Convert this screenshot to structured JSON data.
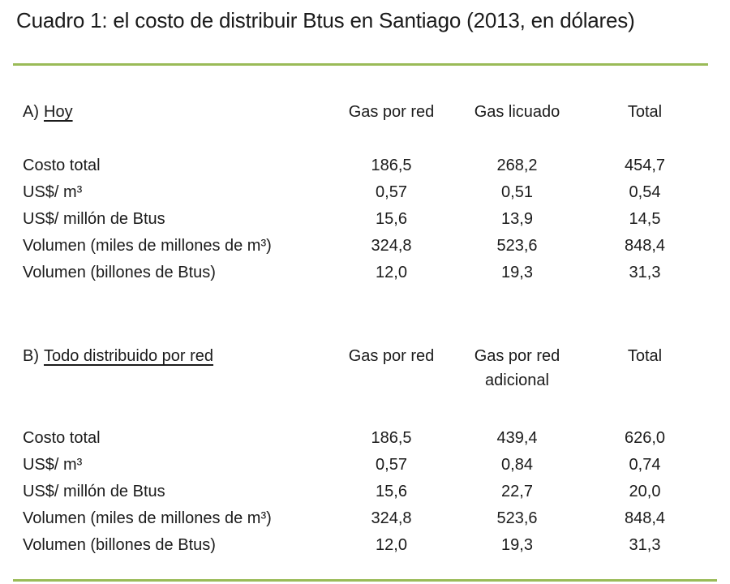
{
  "colors": {
    "accent_green": "#9abb57",
    "text": "#1b1b1b",
    "background": "#ffffff"
  },
  "chart_data": {
    "type": "table",
    "title": "Cuadro 1: el costo de distribuir Btus en Santiago (2013, en dólares)",
    "layout": {
      "grid": "off",
      "dividers": "green horizontal rules top and bottom",
      "value_alignment": "center",
      "decimal_separator": ","
    },
    "sections": [
      {
        "prefix": "A)",
        "name": "Hoy",
        "columns": [
          [
            "Gas por red"
          ],
          [
            "Gas licuado"
          ],
          [
            "Total"
          ]
        ],
        "rows": [
          {
            "label": "Costo total",
            "values": [
              "186,5",
              "268,2",
              "454,7"
            ]
          },
          {
            "label": "US$/ m³",
            "values": [
              "0,57",
              "0,51",
              "0,54"
            ]
          },
          {
            "label": "US$/ millón de Btus",
            "values": [
              "15,6",
              "13,9",
              "14,5"
            ]
          },
          {
            "label": "Volumen (miles de millones de m³)",
            "values": [
              "324,8",
              "523,6",
              "848,4"
            ]
          },
          {
            "label": "Volumen (billones de Btus)",
            "values": [
              "12,0",
              "19,3",
              "31,3"
            ]
          }
        ]
      },
      {
        "prefix": "B)",
        "name": "Todo distribuido por red",
        "columns": [
          [
            "Gas por red"
          ],
          [
            "Gas por red",
            "adicional"
          ],
          [
            "Total"
          ]
        ],
        "rows": [
          {
            "label": "Costo total",
            "values": [
              "186,5",
              "439,4",
              "626,0"
            ]
          },
          {
            "label": "US$/ m³",
            "values": [
              "0,57",
              "0,84",
              "0,74"
            ]
          },
          {
            "label": "US$/ millón de Btus",
            "values": [
              "15,6",
              "22,7",
              "20,0"
            ]
          },
          {
            "label": "Volumen (miles de millones de m³)",
            "values": [
              "324,8",
              "523,6",
              "848,4"
            ]
          },
          {
            "label": "Volumen (billones de Btus)",
            "values": [
              "12,0",
              "19,3",
              "31,3"
            ]
          }
        ]
      }
    ]
  }
}
